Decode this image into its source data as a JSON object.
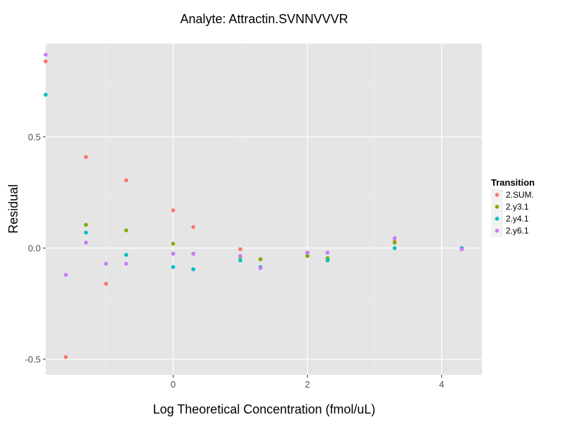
{
  "chart_data": {
    "type": "scatter",
    "title": "Analyte: Attractin.SVNNVVVR",
    "xlabel": "Log Theoretical Concentration (fmol/uL)",
    "ylabel": "Residual",
    "xlim": [
      -1.9,
      4.6
    ],
    "ylim": [
      -0.57,
      0.92
    ],
    "x_ticks": [
      {
        "value": 0,
        "label": "0"
      },
      {
        "value": 2,
        "label": "2"
      },
      {
        "value": 4,
        "label": "4"
      }
    ],
    "y_ticks": [
      {
        "value": -0.5,
        "label": "-0.5"
      },
      {
        "value": 0.0,
        "label": "0.0"
      },
      {
        "value": 0.5,
        "label": "0.5"
      }
    ],
    "grid": true,
    "legend": {
      "title": "Transition",
      "position": "right"
    },
    "series": [
      {
        "name": "2.SUM.",
        "color": "#F8766D",
        "points": [
          {
            "x": -1.9,
            "y": 0.84
          },
          {
            "x": -1.6,
            "y": -0.49
          },
          {
            "x": -1.3,
            "y": 0.41
          },
          {
            "x": -1.0,
            "y": -0.16
          },
          {
            "x": -0.7,
            "y": 0.305
          },
          {
            "x": 0.0,
            "y": 0.17
          },
          {
            "x": 0.3,
            "y": 0.095
          },
          {
            "x": 1.0,
            "y": -0.005
          },
          {
            "x": 1.3,
            "y": -0.05
          },
          {
            "x": 2.0,
            "y": -0.035
          },
          {
            "x": 2.3,
            "y": -0.05
          },
          {
            "x": 3.3,
            "y": 0.03
          },
          {
            "x": 4.3,
            "y": 0.0
          }
        ]
      },
      {
        "name": "2.y3.1",
        "color": "#7CAE00",
        "points": [
          {
            "x": -1.3,
            "y": 0.105
          },
          {
            "x": -0.7,
            "y": 0.08
          },
          {
            "x": 0.0,
            "y": 0.02
          },
          {
            "x": 0.3,
            "y": -0.025
          },
          {
            "x": 1.0,
            "y": -0.04
          },
          {
            "x": 1.3,
            "y": -0.05
          },
          {
            "x": 2.0,
            "y": -0.035
          },
          {
            "x": 2.3,
            "y": -0.045
          },
          {
            "x": 3.3,
            "y": 0.025
          },
          {
            "x": 4.3,
            "y": 0.0
          }
        ]
      },
      {
        "name": "2.y4.1",
        "color": "#00BFC4",
        "points": [
          {
            "x": -1.9,
            "y": 0.69
          },
          {
            "x": -1.3,
            "y": 0.07
          },
          {
            "x": -0.7,
            "y": -0.03
          },
          {
            "x": 0.0,
            "y": -0.085
          },
          {
            "x": 0.3,
            "y": -0.095
          },
          {
            "x": 1.0,
            "y": -0.055
          },
          {
            "x": 1.3,
            "y": -0.085
          },
          {
            "x": 2.0,
            "y": -0.02
          },
          {
            "x": 2.3,
            "y": -0.055
          },
          {
            "x": 3.3,
            "y": 0.0
          },
          {
            "x": 4.3,
            "y": 0.0
          }
        ]
      },
      {
        "name": "2.y6.1",
        "color": "#C77CFF",
        "points": [
          {
            "x": -1.9,
            "y": 0.87
          },
          {
            "x": -1.6,
            "y": -0.12
          },
          {
            "x": -1.3,
            "y": 0.025
          },
          {
            "x": -1.0,
            "y": -0.07
          },
          {
            "x": -0.7,
            "y": -0.07
          },
          {
            "x": 0.0,
            "y": -0.025
          },
          {
            "x": 0.3,
            "y": -0.025
          },
          {
            "x": 1.0,
            "y": -0.035
          },
          {
            "x": 1.3,
            "y": -0.09
          },
          {
            "x": 2.0,
            "y": -0.02
          },
          {
            "x": 2.3,
            "y": -0.02
          },
          {
            "x": 3.3,
            "y": 0.045
          },
          {
            "x": 4.3,
            "y": -0.005
          }
        ]
      }
    ]
  }
}
